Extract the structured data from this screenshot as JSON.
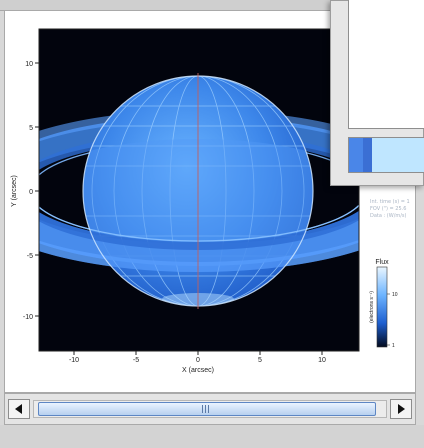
{
  "plot": {
    "x_axis": {
      "label": "X (arcsec)",
      "ticks": [
        "-10",
        "-5",
        "0",
        "5",
        "10"
      ]
    },
    "y_axis": {
      "label": "Y (arcsec)",
      "ticks": [
        "10",
        "5",
        "0",
        "-5",
        "-10"
      ]
    },
    "colorbar": {
      "title": "Flux",
      "unit": "(electrons s⁻¹)",
      "ticks": [
        "10",
        "1"
      ]
    }
  },
  "info_overlay": {
    "lines": [
      "Int. time (s) = 1",
      "FOV (\") = 25.6",
      "Data : (W/m/s)"
    ]
  },
  "swatches": {
    "colors": [
      "#4a86e8",
      "#3b6fd4",
      "#bfe6ff"
    ]
  },
  "colors": {
    "sky": "#02040d",
    "planet": "#3f86e6",
    "rings": "#4a8ff0",
    "accent": "#5d86c4"
  },
  "icons": {
    "scroll_left": "triangle-left-icon",
    "scroll_right": "triangle-right-icon",
    "thumb_grip": "grip-lines-icon"
  }
}
